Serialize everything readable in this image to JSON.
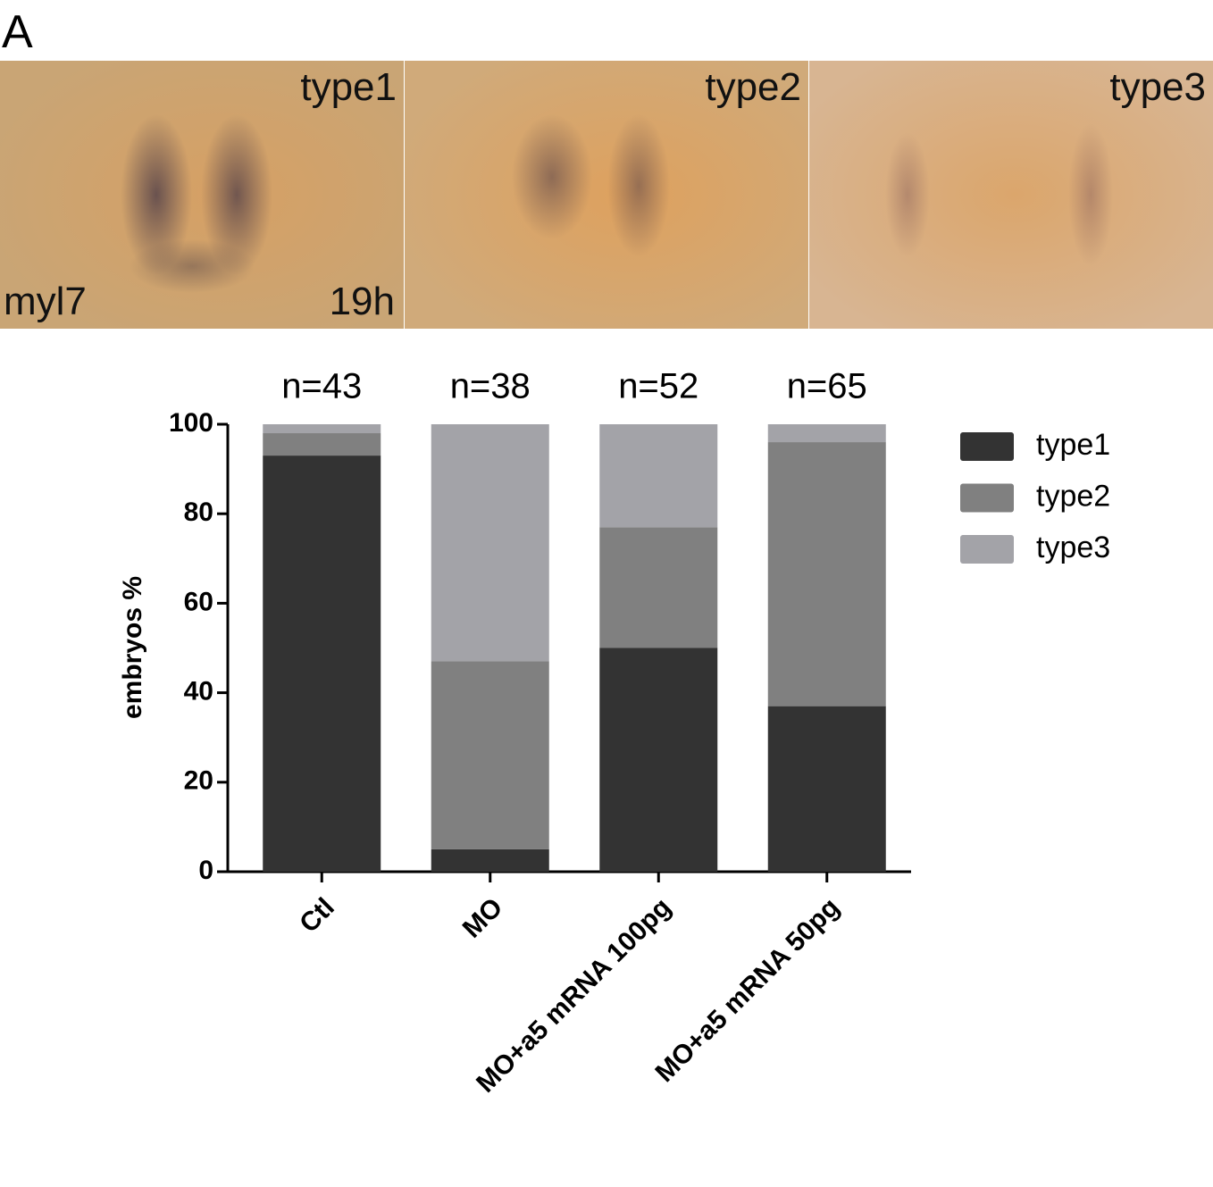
{
  "figure_label": "A",
  "panels": [
    {
      "label": "type1",
      "gene": "myl7",
      "stage": "19h"
    },
    {
      "label": "type2"
    },
    {
      "label": "type3"
    }
  ],
  "chart_data": {
    "type": "bar",
    "stacked": true,
    "ylabel": "embryos %",
    "categories": [
      "Ctl",
      "MO",
      "MO+a5 mRNA 100pg",
      "MO+a5 mRNA 50pg"
    ],
    "annotations": [
      "n=43",
      "n=38",
      "n=52",
      "n=65"
    ],
    "series": [
      {
        "name": "type1",
        "color": "#333333",
        "values": [
          93,
          5,
          50,
          37
        ]
      },
      {
        "name": "type2",
        "color": "#808080",
        "values": [
          5,
          42,
          27,
          59
        ]
      },
      {
        "name": "type3",
        "color": "#a3a3a8",
        "values": [
          2,
          53,
          23,
          4
        ]
      }
    ],
    "ylim": [
      0,
      100
    ],
    "yticks": [
      0,
      20,
      40,
      60,
      80,
      100
    ],
    "legend": "right"
  }
}
